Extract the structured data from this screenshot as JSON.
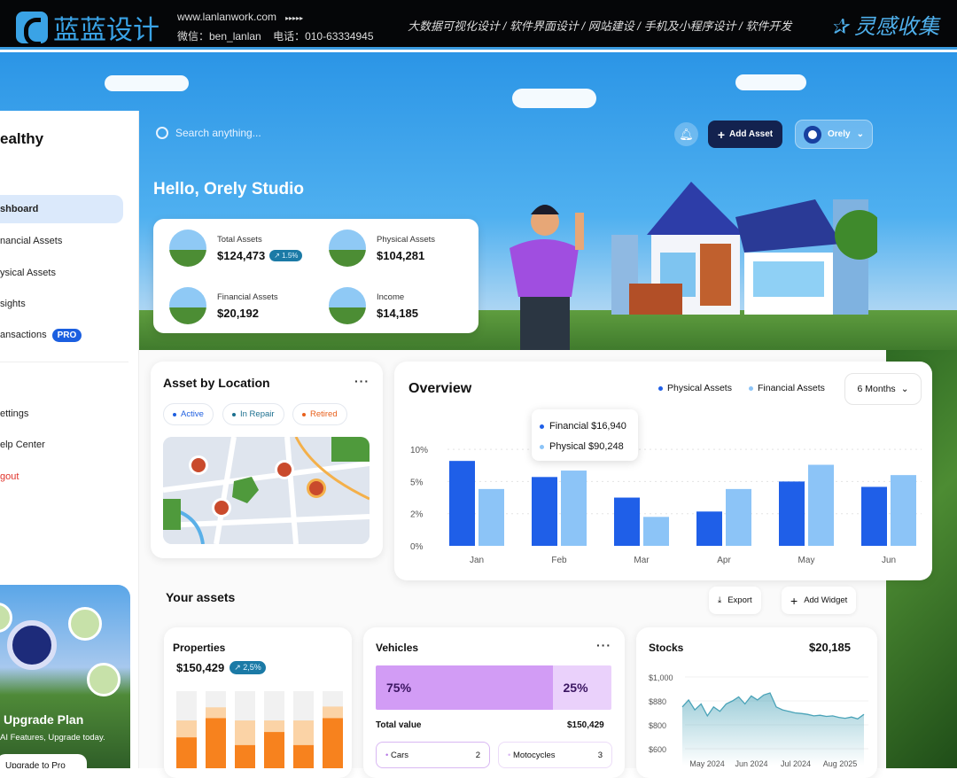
{
  "banner": {
    "logo_text": "蓝蓝设计",
    "website": "www.lanlanwork.com",
    "arrows": "▸▸▸▸▸",
    "wechat": "微信：ben_lanlan",
    "phone": "电话：010-63334945",
    "services": "大数据可视化设计  /  软件界面设计  /  网站建设  /  手机及小程序设计  /  软件开发",
    "right_brand": "灵感收集"
  },
  "sidebar": {
    "brand": "ealthy",
    "items": [
      {
        "label": "shboard",
        "active": true
      },
      {
        "label": "nancial Assets"
      },
      {
        "label": "ysical Assets"
      },
      {
        "label": "sights"
      },
      {
        "label": "ansactions",
        "badge": "PRO"
      },
      {
        "label": "ettings"
      },
      {
        "label": "elp Center"
      },
      {
        "label": "gout"
      }
    ],
    "upgrade": {
      "title": "Upgrade Plan",
      "subtitle": "AI Features, Upgrade today.",
      "button": "Upgrade to Pro"
    }
  },
  "header": {
    "search_placeholder": "Search anything...",
    "add_asset": "Add Asset",
    "user_name": "Orely",
    "greeting": "Hello, Orely Studio"
  },
  "summary": [
    {
      "label": "Total Assets",
      "value": "$124,473",
      "badge": "↗ 1.5%"
    },
    {
      "label": "Physical Assets",
      "value": "$104,281"
    },
    {
      "label": "Financial Assets",
      "value": "$20,192"
    },
    {
      "label": "Income",
      "value": "$14,185"
    }
  ],
  "location": {
    "title": "Asset by Location",
    "more": "···",
    "chips": [
      {
        "label": "Active",
        "color": "#1f5fe0"
      },
      {
        "label": "In Repair",
        "color": "#1b6f8f"
      },
      {
        "label": "Retired",
        "color": "#e8601c"
      }
    ]
  },
  "overview": {
    "title": "Overview",
    "period": "6 Months",
    "tooltip": [
      {
        "label": "Financial $16,940",
        "color": "#1f5fe8"
      },
      {
        "label": "Physical $90,248",
        "color": "#8cc4f7"
      }
    ]
  },
  "chart_data": [
    {
      "type": "bar",
      "title": "Overview",
      "categories": [
        "Jan",
        "Feb",
        "Mar",
        "Apr",
        "May",
        "Jun"
      ],
      "yticks": [
        "0%",
        "2%",
        "5%",
        "10%"
      ],
      "ytick_values": [
        0,
        2,
        5,
        10
      ],
      "grid": true,
      "legend": "top-right",
      "series": [
        {
          "name": "Physical Assets",
          "color": "#1f5fe8",
          "values": [
            8.2,
            5.7,
            3.5,
            2.2,
            5.0,
            4.5
          ]
        },
        {
          "name": "Financial Assets",
          "color": "#8cc4f7",
          "values": [
            4.3,
            6.7,
            1.8,
            4.3,
            7.6,
            6.0
          ]
        }
      ]
    },
    {
      "type": "bar",
      "title": "Properties",
      "stacked": true,
      "series": [
        {
          "color": "#f7821e",
          "values": [
            40,
            65,
            30,
            47,
            30,
            65
          ]
        },
        {
          "color": "#fbd3a6",
          "values": [
            62,
            79,
            62,
            62,
            62,
            80
          ]
        },
        {
          "color": "#f1f1f1",
          "values": [
            100,
            100,
            100,
            100,
            100,
            100
          ]
        }
      ]
    },
    {
      "type": "area",
      "title": "Stocks",
      "yticks": [
        "$1,000",
        "$880",
        "$800",
        "$600"
      ],
      "ytick_values": [
        1000,
        880,
        800,
        600
      ],
      "xticks": [
        "May 2024",
        "Jun 2024",
        "Jul 2024",
        "Aug 2025"
      ],
      "color": "#4aa3b8",
      "values": [
        860,
        885,
        850,
        870,
        830,
        860,
        845,
        870,
        880,
        900,
        870,
        905,
        885,
        910,
        920,
        860,
        850,
        845,
        840,
        838,
        835,
        830,
        832,
        828,
        830,
        825,
        822,
        826,
        820,
        835
      ]
    }
  ],
  "assets": {
    "title": "Your assets",
    "export": "Export",
    "add_widget": "Add Widget",
    "properties": {
      "title": "Properties",
      "value": "$150,429",
      "badge": "↗ 2,5%"
    },
    "vehicles": {
      "title": "Vehicles",
      "more": "···",
      "split": [
        {
          "label": "75%",
          "share": 75,
          "color": "#d29cf5"
        },
        {
          "label": "25%",
          "share": 25,
          "color": "#ead1fb"
        }
      ],
      "total_label": "Total value",
      "total_value": "$150,429",
      "chips": [
        {
          "label": "Cars",
          "count": "2"
        },
        {
          "label": "Motocycles",
          "count": "3"
        }
      ]
    },
    "stocks": {
      "title": "Stocks",
      "value": "$20,185"
    }
  }
}
